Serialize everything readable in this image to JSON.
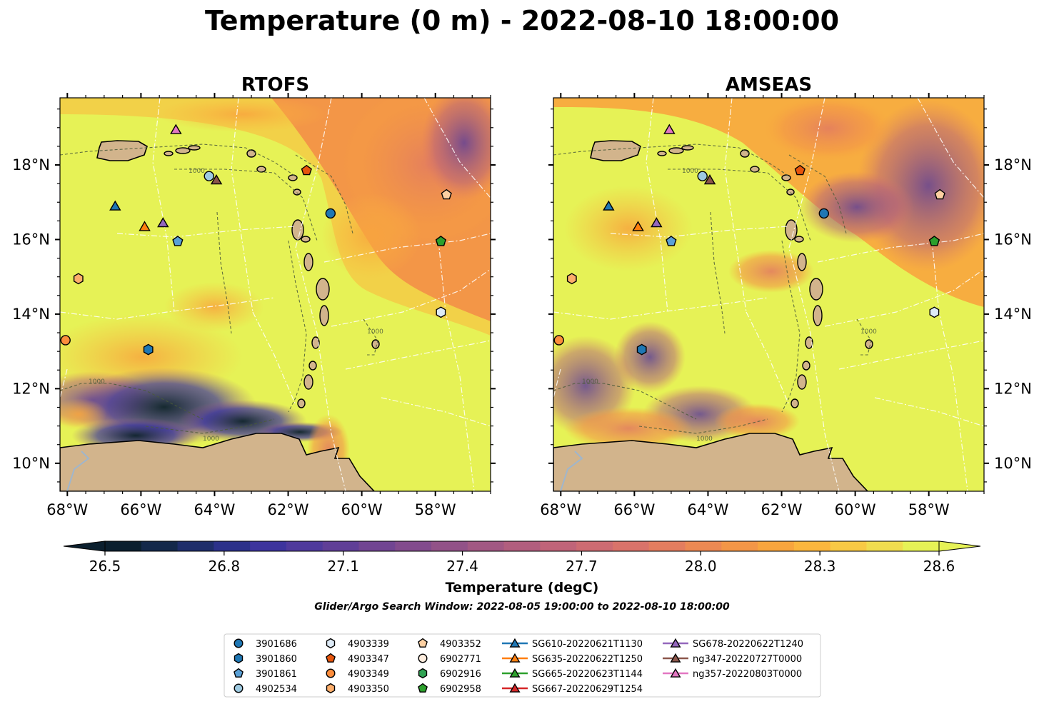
{
  "figure": {
    "title": "Temperature (0 m) - 2022-08-10 18:00:00",
    "search_window": "Glider/Argo Search Window: 2022-08-05 19:00:00 to 2022-08-10 18:00:00"
  },
  "colorbar": {
    "label": "Temperature (degC)",
    "ticks": [
      "26.5",
      "26.8",
      "27.1",
      "27.4",
      "27.7",
      "28.0",
      "28.3",
      "28.6"
    ],
    "range": [
      26.5,
      28.6
    ],
    "extend": "both",
    "colors": [
      "#0b1f2e",
      "#14284a",
      "#1f2d6a",
      "#2c318a",
      "#3d349d",
      "#4f3a9c",
      "#603f97",
      "#714592",
      "#824b8d",
      "#925288",
      "#a25883",
      "#b15e7e",
      "#c06479",
      "#cd6b72",
      "#d9736a",
      "#e37d5f",
      "#ec8953",
      "#f39647",
      "#f8a53e",
      "#fbb63e",
      "#f8c945",
      "#f0dc4f",
      "#e6f256"
    ]
  },
  "chart_data": [
    {
      "type": "heatmap",
      "title": "RTOFS",
      "xlim": [
        -68.2,
        -56.5
      ],
      "ylim": [
        9.25,
        19.8
      ],
      "xticks": [
        "68°W",
        "66°W",
        "64°W",
        "62°W",
        "60°W",
        "58°W"
      ],
      "yticks": [
        "10°N",
        "12°N",
        "14°N",
        "16°N",
        "18°N"
      ],
      "ytick_side": "left",
      "markers": [
        {
          "id": "3901686",
          "lon": -60.85,
          "lat": 16.7
        },
        {
          "id": "3901860",
          "lon": -65.8,
          "lat": 13.05
        },
        {
          "id": "3901861",
          "lon": -65.0,
          "lat": 15.95
        },
        {
          "id": "4902534",
          "lon": -64.15,
          "lat": 17.7
        },
        {
          "id": "4903339",
          "lon": -57.85,
          "lat": 14.05
        },
        {
          "id": "4903347",
          "lon": -61.5,
          "lat": 17.85
        },
        {
          "id": "4903349",
          "lon": -68.05,
          "lat": 13.3
        },
        {
          "id": "4903350",
          "lon": -67.7,
          "lat": 14.95
        },
        {
          "id": "4903352",
          "lon": -57.7,
          "lat": 17.2
        },
        {
          "id": "6902958",
          "lon": -57.85,
          "lat": 15.95
        },
        {
          "id": "SG610-20220621T1130",
          "lon": -66.7,
          "lat": 16.9
        },
        {
          "id": "SG635-20220622T1250",
          "lon": -65.9,
          "lat": 16.35
        },
        {
          "id": "SG678-20220622T1240",
          "lon": -65.4,
          "lat": 16.45
        },
        {
          "id": "ng347-20220727T0000",
          "lon": -63.95,
          "lat": 17.6
        },
        {
          "id": "ng357-20220803T0000",
          "lon": -65.05,
          "lat": 18.95
        }
      ]
    },
    {
      "type": "heatmap",
      "title": "AMSEAS",
      "xlim": [
        -68.2,
        -56.5
      ],
      "ylim": [
        9.25,
        19.8
      ],
      "xticks": [
        "68°W",
        "66°W",
        "64°W",
        "62°W",
        "60°W",
        "58°W"
      ],
      "yticks": [
        "10°N",
        "12°N",
        "14°N",
        "16°N",
        "18°N"
      ],
      "ytick_side": "right",
      "markers": [
        {
          "id": "3901686",
          "lon": -60.85,
          "lat": 16.7
        },
        {
          "id": "3901860",
          "lon": -65.8,
          "lat": 13.05
        },
        {
          "id": "3901861",
          "lon": -65.0,
          "lat": 15.95
        },
        {
          "id": "4902534",
          "lon": -64.15,
          "lat": 17.7
        },
        {
          "id": "4903339",
          "lon": -57.85,
          "lat": 14.05
        },
        {
          "id": "4903347",
          "lon": -61.5,
          "lat": 17.85
        },
        {
          "id": "4903349",
          "lon": -68.05,
          "lat": 13.3
        },
        {
          "id": "4903350",
          "lon": -67.7,
          "lat": 14.95
        },
        {
          "id": "4903352",
          "lon": -57.7,
          "lat": 17.2
        },
        {
          "id": "6902958",
          "lon": -57.85,
          "lat": 15.95
        },
        {
          "id": "SG610-20220621T1130",
          "lon": -66.7,
          "lat": 16.9
        },
        {
          "id": "SG635-20220622T1250",
          "lon": -65.9,
          "lat": 16.35
        },
        {
          "id": "SG678-20220622T1240",
          "lon": -65.4,
          "lat": 16.45
        },
        {
          "id": "ng347-20220727T0000",
          "lon": -63.95,
          "lat": 17.6
        },
        {
          "id": "ng357-20220803T0000",
          "lon": -65.05,
          "lat": 18.95
        }
      ]
    }
  ],
  "contour_label": "1000",
  "legend": [
    {
      "label": "3901686",
      "shape": "circle",
      "color": "#1f77b4",
      "line": false
    },
    {
      "label": "3901860",
      "shape": "hexagon",
      "color": "#1f77b4",
      "line": false
    },
    {
      "label": "3901861",
      "shape": "pentagon",
      "color": "#5aa0d6",
      "line": false
    },
    {
      "label": "4902534",
      "shape": "circle",
      "color": "#9ecae1",
      "line": false
    },
    {
      "label": "4903339",
      "shape": "hexagon",
      "color": "#deebf7",
      "line": false
    },
    {
      "label": "4903347",
      "shape": "pentagon",
      "color": "#e6550d",
      "line": false
    },
    {
      "label": "4903349",
      "shape": "circle",
      "color": "#fd8d3c",
      "line": false
    },
    {
      "label": "4903350",
      "shape": "hexagon",
      "color": "#fdae6b",
      "line": false
    },
    {
      "label": "4903352",
      "shape": "pentagon",
      "color": "#fdd0a2",
      "line": false
    },
    {
      "label": "6902771",
      "shape": "circle",
      "color": "#feedde",
      "line": false
    },
    {
      "label": "6902916",
      "shape": "hexagon",
      "color": "#31a354",
      "line": false
    },
    {
      "label": "6902958",
      "shape": "pentagon",
      "color": "#2ca02c",
      "line": false
    },
    {
      "label": "SG610-20220621T1130",
      "shape": "triangle",
      "color": "#1f77b4",
      "line": true
    },
    {
      "label": "SG635-20220622T1250",
      "shape": "triangle",
      "color": "#ff7f0e",
      "line": true
    },
    {
      "label": "SG665-20220623T1144",
      "shape": "triangle",
      "color": "#2ca02c",
      "line": true
    },
    {
      "label": "SG667-20220629T1254",
      "shape": "triangle",
      "color": "#d62728",
      "line": true
    },
    {
      "label": "SG678-20220622T1240",
      "shape": "triangle",
      "color": "#9467bd",
      "line": true
    },
    {
      "label": "ng347-20220727T0000",
      "shape": "triangle",
      "color": "#8c564b",
      "line": true
    },
    {
      "label": "ng357-20220803T0000",
      "shape": "triangle",
      "color": "#e377c2",
      "line": true
    }
  ]
}
